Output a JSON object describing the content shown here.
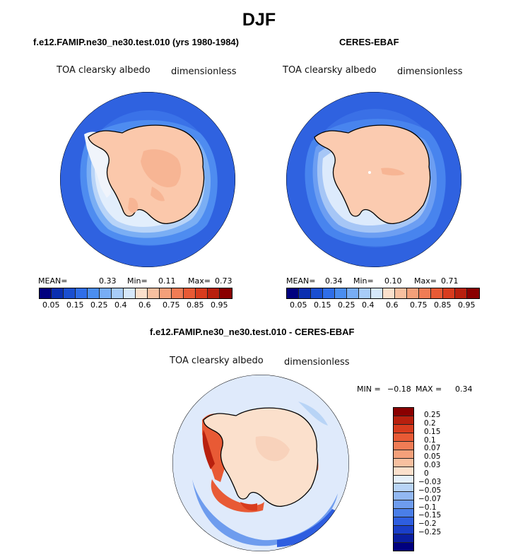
{
  "figure_title": "DJF",
  "panels": [
    {
      "title": "f.e12.FAMIP.ne30_ne30.test.010 (yrs 1980-1984)",
      "variable": "TOA clearsky albedo",
      "units": "dimensionless",
      "mean_label": "MEAN=",
      "mean": "0.33",
      "min_label": "Min=",
      "min": "0.11",
      "max_label": "Max=",
      "max": "0.73"
    },
    {
      "title": "CERES-EBAF",
      "variable": "TOA clearsky albedo",
      "units": "dimensionless",
      "mean_label": "MEAN=",
      "mean": "0.34",
      "min_label": "Min=",
      "min": "0.10",
      "max_label": "Max=",
      "max": "0.71"
    }
  ],
  "diff_panel": {
    "title": "f.e12.FAMIP.ne30_ne30.test.010 - CERES-EBAF",
    "variable": "TOA clearsky albedo",
    "units": "dimensionless",
    "min_label": "MIN =",
    "min": "−0.18",
    "max_label": "MAX =",
    "max": "0.34"
  },
  "colorbar_abs": {
    "colors": [
      "#00007f",
      "#0a2fb0",
      "#1a4fd0",
      "#2f6ee8",
      "#4b8ef0",
      "#78adf5",
      "#a8ccf8",
      "#d6e8fb",
      "#fbe0cc",
      "#f8c0a0",
      "#f4a07a",
      "#f07c55",
      "#e85a35",
      "#d83c1e",
      "#b8200e",
      "#8a0000"
    ],
    "ticks": [
      "0.05",
      "0.15",
      "0.25",
      "0.4",
      "0.6",
      "0.75",
      "0.85",
      "0.95"
    ]
  },
  "colorbar_diff": {
    "colors": [
      "#8a0000",
      "#b8200e",
      "#d83c1e",
      "#e85a35",
      "#f07c55",
      "#f4a07a",
      "#f8c0a0",
      "#fbe0cc",
      "#e6f0fa",
      "#b8d4f6",
      "#92b8f2",
      "#6e9cee",
      "#4a7ee8",
      "#2e5ee0",
      "#1a3ec8",
      "#0a1ea0",
      "#00007f"
    ],
    "ticks": [
      "0.25",
      "0.2",
      "0.15",
      "0.1",
      "0.07",
      "0.05",
      "0.03",
      "0",
      "−0.03",
      "−0.05",
      "−0.07",
      "−0.1",
      "−0.15",
      "−0.2",
      "−0.25"
    ]
  }
}
